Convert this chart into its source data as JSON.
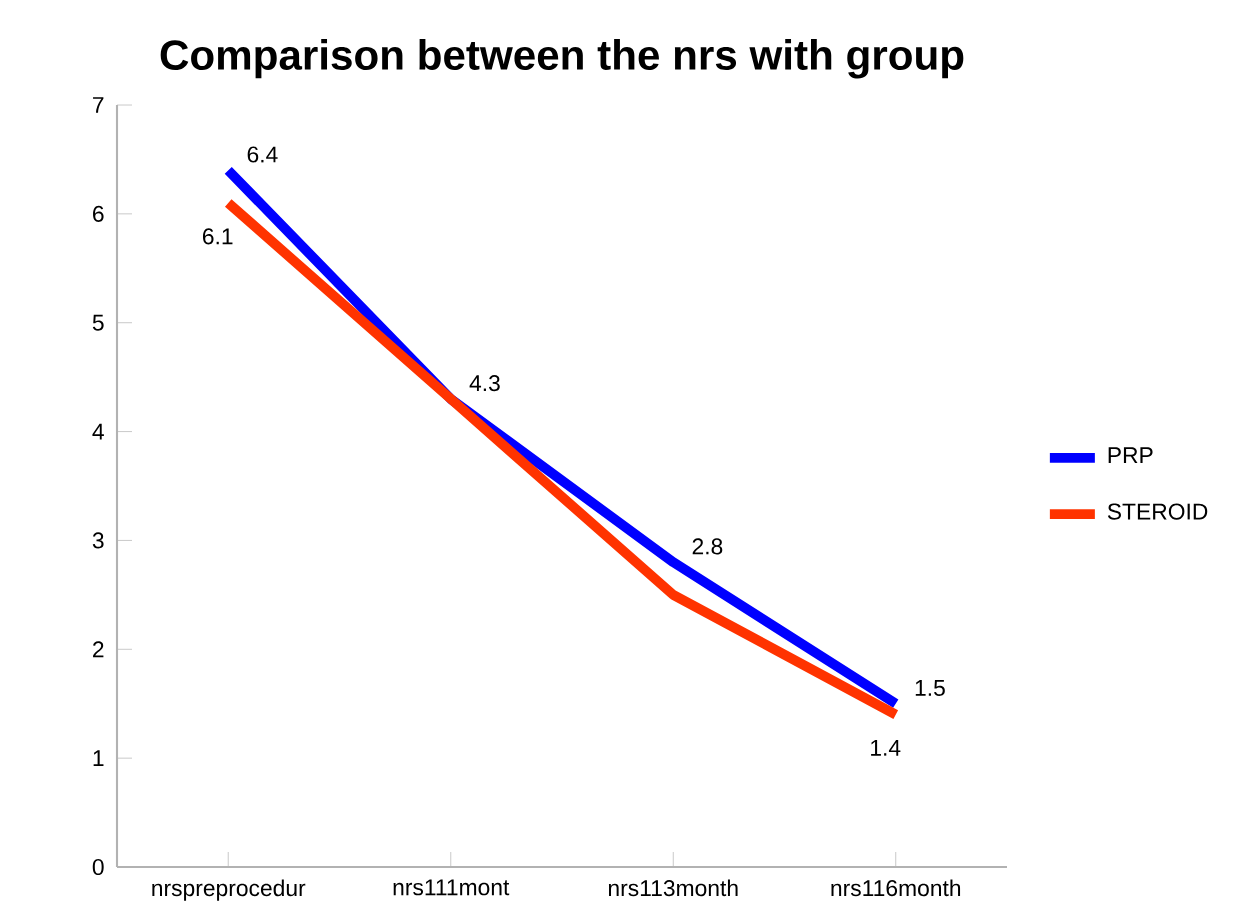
{
  "chart_data": {
    "type": "line",
    "title": "Comparison between the nrs with group",
    "categories": [
      "nrspreprocedur",
      "nrs111mont",
      "nrs113month",
      "nrs116month"
    ],
    "series": [
      {
        "name": "PRP",
        "color": "#0000ff",
        "values": [
          6.4,
          4.3,
          2.8,
          1.5
        ],
        "value_labels": [
          "6.4",
          "4.3",
          "2.8",
          "1.5"
        ]
      },
      {
        "name": "STEROID",
        "color": "#ff3300",
        "values": [
          6.1,
          4.3,
          2.5,
          1.4
        ],
        "value_labels": [
          "6.1",
          null,
          null,
          "1.4"
        ]
      }
    ],
    "ylim": [
      0,
      7
    ],
    "yticks": [
      0,
      1,
      2,
      3,
      4,
      5,
      6,
      7
    ],
    "grid": false,
    "legend": "right",
    "marker": "none",
    "line_style": "solid"
  }
}
